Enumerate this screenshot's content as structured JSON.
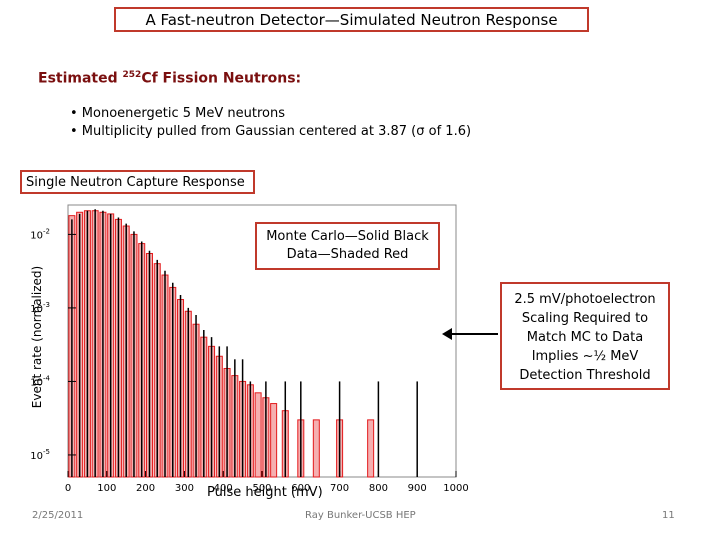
{
  "slide": {
    "title": "A Fast-neutron Detector—Simulated Neutron Response",
    "subtitle_pre": "Estimated ",
    "subtitle_sup": "252",
    "subtitle_post": "Cf Fission Neutrons:",
    "bullets": [
      "• Monoenergetic 5 MeV neutrons",
      "• Multiplicity pulled from Gaussian centered at 3.87 (σ of 1.6)"
    ],
    "capture_label": "Single Neutron Capture Response",
    "mc_label_line1": "Monte Carlo—Solid Black",
    "mc_label_line2": "Data—Shaded Red",
    "scaling_note": [
      "2.5 mV/photoelectron",
      "Scaling Required to",
      "Match MC to Data",
      "Implies ~½ MeV",
      "Detection Threshold"
    ],
    "footer_date": "2/25/2011",
    "footer_center": "Ray Bunker-UCSB HEP",
    "page_number": "11"
  },
  "colors": {
    "box_border": "#c0392b",
    "subtitle": "#7a0f0f",
    "data_red": "#e31a1c",
    "mc_black": "#000000",
    "blue": "#1f3fbf"
  },
  "chart_data": {
    "type": "bar",
    "xlabel": "Pulse height (mV)",
    "ylabel": "Event rate (normalized)",
    "xlim": [
      0,
      1000
    ],
    "ylim_log10": [
      -5.3,
      -1.6
    ],
    "x_ticks": [
      "0",
      "100",
      "200",
      "300",
      "400",
      "500",
      "600",
      "700",
      "800",
      "900",
      "1000"
    ],
    "y_ticks": [
      {
        "base": "10",
        "exp": "-2"
      },
      {
        "base": "10",
        "exp": "-3"
      },
      {
        "base": "10",
        "exp": "-4"
      },
      {
        "base": "10",
        "exp": "-5"
      }
    ],
    "series": [
      {
        "name": "Data",
        "style": "shaded red",
        "x": [
          10,
          30,
          50,
          70,
          90,
          110,
          130,
          150,
          170,
          190,
          210,
          230,
          250,
          270,
          290,
          310,
          330,
          350,
          370,
          390,
          410,
          430,
          450,
          470,
          490,
          510,
          530,
          560,
          600,
          640,
          700,
          780
        ],
        "values": [
          0.018,
          0.02,
          0.021,
          0.021,
          0.02,
          0.019,
          0.016,
          0.013,
          0.01,
          0.0075,
          0.0055,
          0.004,
          0.0028,
          0.0019,
          0.0013,
          0.0009,
          0.0006,
          0.0004,
          0.0003,
          0.00022,
          0.00015,
          0.00012,
          0.0001,
          9e-05,
          7e-05,
          6e-05,
          5e-05,
          4e-05,
          3e-05,
          3e-05,
          3e-05,
          3e-05
        ]
      },
      {
        "name": "Monte Carlo",
        "style": "solid black",
        "x": [
          10,
          30,
          50,
          70,
          90,
          110,
          130,
          150,
          170,
          190,
          210,
          230,
          250,
          270,
          290,
          310,
          330,
          350,
          370,
          390,
          410,
          430,
          450,
          470,
          510,
          560,
          600,
          700,
          800,
          900
        ],
        "values": [
          0.016,
          0.019,
          0.021,
          0.022,
          0.021,
          0.019,
          0.017,
          0.014,
          0.011,
          0.008,
          0.006,
          0.0045,
          0.0032,
          0.0022,
          0.0015,
          0.001,
          0.0008,
          0.0005,
          0.0004,
          0.0003,
          0.0003,
          0.0002,
          0.0002,
          0.0001,
          0.0001,
          0.0001,
          0.0001,
          0.0001,
          0.0001,
          0.0001
        ]
      }
    ]
  }
}
